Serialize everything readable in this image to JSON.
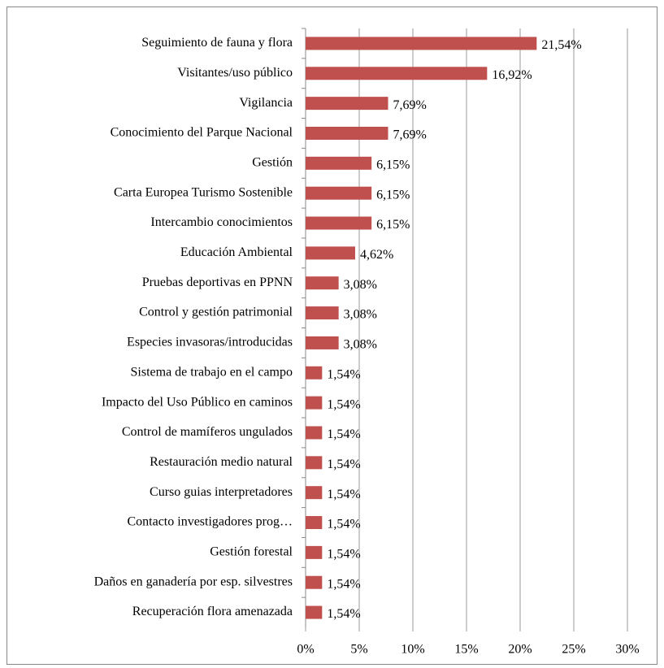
{
  "chart_data": {
    "type": "bar",
    "orientation": "horizontal",
    "categories": [
      "Seguimiento de fauna y flora",
      "Visitantes/uso público",
      "Vigilancia",
      "Conocimiento del Parque Nacional",
      "Gestión",
      "Carta Europea Turismo Sostenible",
      "Intercambio conocimientos",
      "Educación Ambiental",
      "Pruebas deportivas  en PPNN",
      "Control y gestión patrimonial",
      "Especies invasoras/introducidas",
      "Sistema de trabajo en el campo",
      "Impacto del Uso Público en caminos",
      "Control de mamíferos ungulados",
      "Restauración medio natural",
      "Curso guias interpretadores",
      "Contacto investigadores prog…",
      "Gestión forestal",
      "Daños en ganadería por esp. silvestres",
      "Recuperación flora amenazada"
    ],
    "values": [
      21.54,
      16.92,
      7.69,
      7.69,
      6.15,
      6.15,
      6.15,
      4.62,
      3.08,
      3.08,
      3.08,
      1.54,
      1.54,
      1.54,
      1.54,
      1.54,
      1.54,
      1.54,
      1.54,
      1.54
    ],
    "value_labels": [
      "21,54%",
      "16,92%",
      "7,69%",
      "7,69%",
      "6,15%",
      "6,15%",
      "6,15%",
      "4,62%",
      "3,08%",
      "3,08%",
      "3,08%",
      "1,54%",
      "1,54%",
      "1,54%",
      "1,54%",
      "1,54%",
      "1,54%",
      "1,54%",
      "1,54%",
      "1,54%"
    ],
    "color": "#c0504d",
    "xlim": [
      0,
      30
    ],
    "xticks": [
      {
        "value": 0,
        "label": "0%"
      },
      {
        "value": 5,
        "label": "5%"
      },
      {
        "value": 10,
        "label": "10%"
      },
      {
        "value": 15,
        "label": "15%"
      },
      {
        "value": 20,
        "label": "20%"
      },
      {
        "value": 25,
        "label": "25%"
      },
      {
        "value": 30,
        "label": "30%"
      }
    ],
    "grid": true
  }
}
